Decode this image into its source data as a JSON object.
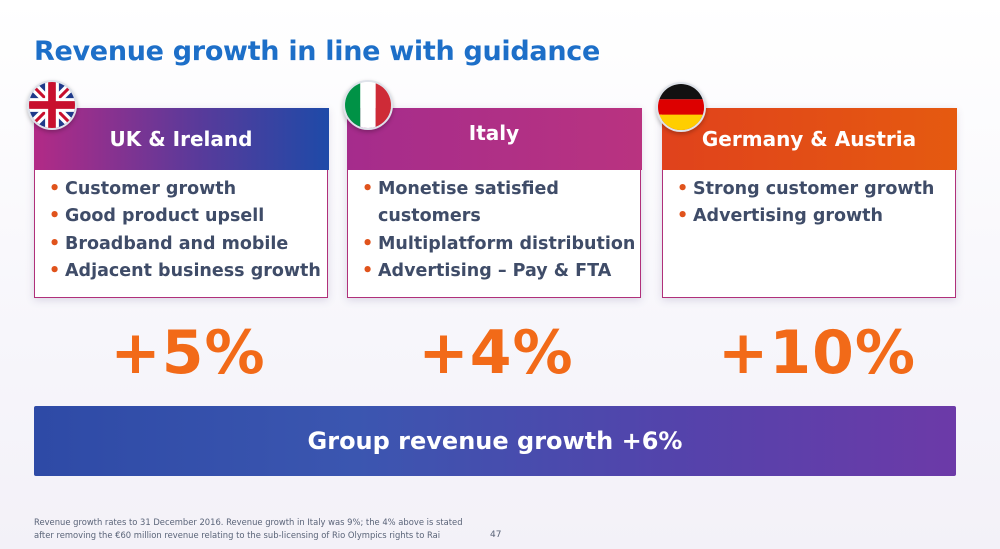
{
  "title": "Revenue growth in line with guidance",
  "regions": [
    {
      "name": "UK & Ireland",
      "flag": "uk-flag",
      "bullets": [
        "Customer growth",
        "Good product upsell",
        "Broadband and mobile",
        "Adjacent business growth"
      ],
      "growth": "+5%"
    },
    {
      "name": "Italy",
      "flag": "italy-flag",
      "bullets": [
        "Monetise satisfied customers",
        "Multiplatform distribution",
        "Advertising – Pay & FTA"
      ],
      "growth": "+4%"
    },
    {
      "name": "Germany & Austria",
      "flag": "germany-flag",
      "bullets": [
        "Strong customer growth",
        "Advertising growth"
      ],
      "growth": "+10%"
    }
  ],
  "group": {
    "label": "Group revenue growth +6%"
  },
  "footnote": "Revenue growth rates to 31 December 2016. Revenue growth in Italy was 9%; the 4% above is stated after removing the €60 million revenue relating to the sub-licensing of Rio Olympics rights to Rai",
  "page_number": "47",
  "colors": {
    "title": "#1d6fc8",
    "accent_orange": "#f26a18",
    "uk_header": "#1e4aa8",
    "italy_header": "#a52c8c",
    "germany_header": "#e0421c",
    "group_bar": "#3b56b0"
  }
}
